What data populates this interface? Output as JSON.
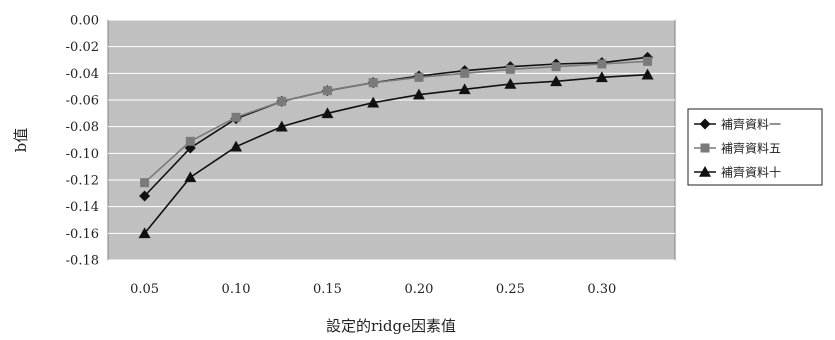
{
  "chart_data": {
    "type": "line",
    "xlabel": "設定的ridge因素值",
    "ylabel": "b值",
    "xlim": [
      0.03,
      0.34
    ],
    "ylim": [
      -0.18,
      0.0
    ],
    "x_ticks": [
      "0.05",
      "0.10",
      "0.15",
      "0.20",
      "0.25",
      "0.30"
    ],
    "y_ticks": [
      "0.00",
      "-0.02",
      "-0.04",
      "-0.06",
      "-0.08",
      "-0.10",
      "-0.12",
      "-0.14",
      "-0.16",
      "-0.18"
    ],
    "grid": true,
    "legend_position": "right",
    "x": [
      0.05,
      0.075,
      0.1,
      0.125,
      0.15,
      0.175,
      0.2,
      0.225,
      0.25,
      0.275,
      0.3,
      0.325
    ],
    "series": [
      {
        "name": "補齊資料一",
        "marker": "diamond",
        "color": "#111111",
        "values": [
          -0.132,
          -0.096,
          -0.074,
          -0.061,
          -0.053,
          -0.047,
          -0.042,
          -0.038,
          -0.035,
          -0.033,
          -0.032,
          -0.028
        ]
      },
      {
        "name": "補齊資料五",
        "marker": "square",
        "color": "#7a7a7a",
        "values": [
          -0.122,
          -0.091,
          -0.073,
          -0.061,
          -0.053,
          -0.047,
          -0.043,
          -0.04,
          -0.037,
          -0.035,
          -0.033,
          -0.031
        ]
      },
      {
        "name": "補齊資料十",
        "marker": "triangle",
        "color": "#111111",
        "values": [
          -0.16,
          -0.118,
          -0.095,
          -0.08,
          -0.07,
          -0.062,
          -0.056,
          -0.052,
          -0.048,
          -0.046,
          -0.043,
          -0.041
        ]
      }
    ]
  }
}
